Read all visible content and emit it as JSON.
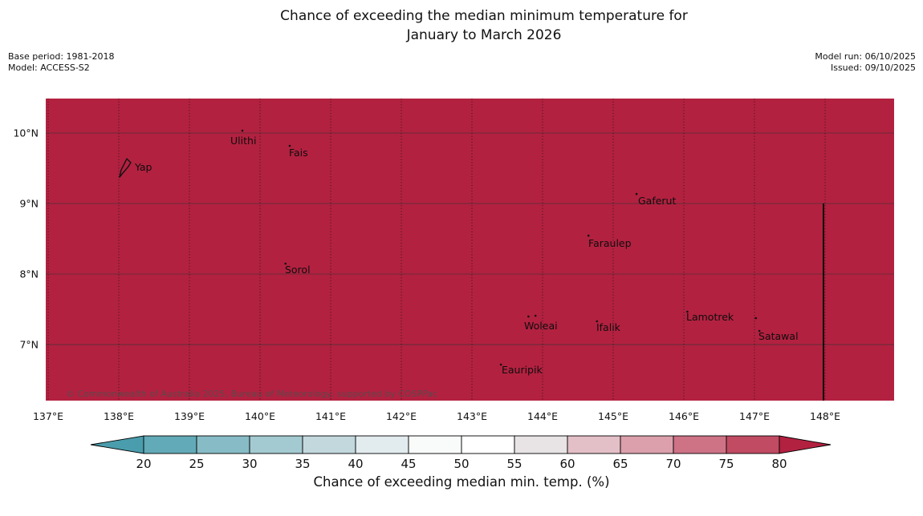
{
  "title": {
    "line1": "Chance of exceeding the median minimum temperature for",
    "line2": "January to March 2026"
  },
  "header": {
    "base_period": "Base period: 1981-2018",
    "model": "Model: ACCESS-S2",
    "model_run": "Model run: 06/10/2025",
    "issued": "Issued: 09/10/2025"
  },
  "map": {
    "fill_color": "#B32140",
    "copyright": "© Commonwealth of Australia 2025, Bureau of Meteorology, supported by COSPPac",
    "extent": {
      "lon_min": 136.966,
      "lon_max": 148.977,
      "lat_min": 6.205,
      "lat_max": 10.489
    },
    "x_ticks": [
      {
        "lon": 137,
        "label": "137°E"
      },
      {
        "lon": 138,
        "label": "138°E"
      },
      {
        "lon": 139,
        "label": "139°E"
      },
      {
        "lon": 140,
        "label": "140°E"
      },
      {
        "lon": 141,
        "label": "141°E"
      },
      {
        "lon": 142,
        "label": "142°E"
      },
      {
        "lon": 143,
        "label": "143°E"
      },
      {
        "lon": 144,
        "label": "144°E"
      },
      {
        "lon": 145,
        "label": "145°E"
      },
      {
        "lon": 146,
        "label": "146°E"
      },
      {
        "lon": 147,
        "label": "147°E"
      },
      {
        "lon": 148,
        "label": "148°E"
      }
    ],
    "y_ticks": [
      {
        "lat": 10,
        "label": "10°N"
      },
      {
        "lat": 9,
        "label": "9°N"
      },
      {
        "lat": 8,
        "label": "8°N"
      },
      {
        "lat": 7,
        "label": "7°N"
      }
    ],
    "places": [
      {
        "name": "Yap",
        "lon": 138.227,
        "lat": 9.466
      },
      {
        "name": "Ulithi",
        "lon": 139.58,
        "lat": 9.841
      },
      {
        "name": "Fais",
        "lon": 140.409,
        "lat": 9.67
      },
      {
        "name": "Gaferut",
        "lon": 145.352,
        "lat": 8.989
      },
      {
        "name": "Faraulep",
        "lon": 144.648,
        "lat": 8.386
      },
      {
        "name": "Sorol",
        "lon": 140.352,
        "lat": 8.011
      },
      {
        "name": "Woleai",
        "lon": 143.739,
        "lat": 7.216
      },
      {
        "name": "Ifalik",
        "lon": 144.761,
        "lat": 7.193
      },
      {
        "name": "Lamotrek",
        "lon": 146.034,
        "lat": 7.341
      },
      {
        "name": "Satawal",
        "lon": 147.057,
        "lat": 7.068
      },
      {
        "name": "Eauripik",
        "lon": 143.42,
        "lat": 6.591
      }
    ],
    "island_dots": [
      {
        "lon": 139.75,
        "lat": 10.034
      },
      {
        "lon": 140.42,
        "lat": 9.818
      },
      {
        "lon": 145.33,
        "lat": 9.136
      },
      {
        "lon": 144.65,
        "lat": 8.545
      },
      {
        "lon": 140.36,
        "lat": 8.148
      },
      {
        "lon": 143.8,
        "lat": 7.398
      },
      {
        "lon": 143.9,
        "lat": 7.409
      },
      {
        "lon": 144.77,
        "lat": 7.33
      },
      {
        "lon": 146.05,
        "lat": 7.466
      },
      {
        "lon": 147.02,
        "lat": 7.375
      },
      {
        "lon": 147.07,
        "lat": 7.193
      },
      {
        "lon": 143.41,
        "lat": 6.716
      }
    ],
    "yap_island": [
      [
        138.114,
        9.636
      ],
      [
        138.17,
        9.58
      ],
      [
        138.125,
        9.511
      ],
      [
        138.057,
        9.432
      ],
      [
        138.011,
        9.375
      ],
      [
        138.034,
        9.477
      ],
      [
        138.08,
        9.568
      ]
    ],
    "boundary_line": {
      "lon": 147.977,
      "lat_from": 9.0,
      "lat_to": 6.205
    }
  },
  "colorbar": {
    "label": "Chance of exceeding median min. temp. (%)",
    "tick_labels": [
      "20",
      "25",
      "30",
      "35",
      "40",
      "45",
      "50",
      "55",
      "60",
      "65",
      "70",
      "75",
      "80"
    ],
    "segment_colors": [
      "#62AAB7",
      "#87BCC6",
      "#A4CAD1",
      "#C3D8DC",
      "#E2EBEE",
      "#F9FBFB",
      "#FFFFFF",
      "#E8E4E5",
      "#E3BFC7",
      "#DBA0AC",
      "#CE7286",
      "#C04B62"
    ],
    "under_color": "#4A9DAC",
    "over_color": "#B32140"
  }
}
